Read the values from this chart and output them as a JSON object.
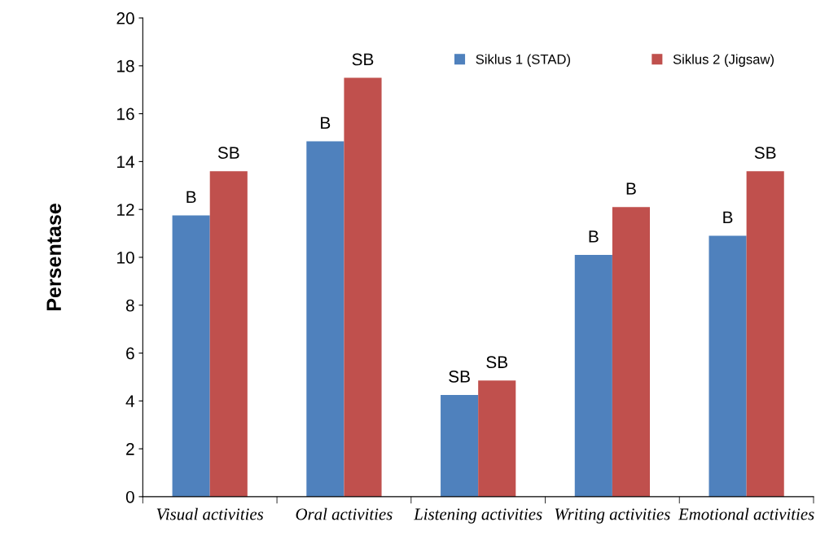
{
  "chart_data": {
    "type": "bar",
    "ylabel": "Persentase",
    "categories": [
      "Visual activities",
      "Oral activities",
      "Listening activities",
      "Writing activities",
      "Emotional activities"
    ],
    "series": [
      {
        "name": "Siklus 1 (STAD)",
        "color": "#4f81bd",
        "values": [
          11.75,
          14.85,
          4.25,
          10.1,
          10.9
        ],
        "value_labels": [
          "B",
          "B",
          "SB",
          "B",
          "B"
        ]
      },
      {
        "name": "Siklus 2 (Jigsaw)",
        "color": "#c0504d",
        "values": [
          13.6,
          17.5,
          4.85,
          12.1,
          13.6
        ],
        "value_labels": [
          "SB",
          "SB",
          "SB",
          "B",
          "SB"
        ]
      }
    ],
    "ylim": [
      0,
      20
    ],
    "yticks": [
      0,
      2,
      4,
      6,
      8,
      10,
      12,
      14,
      16,
      18,
      20
    ],
    "grid": false,
    "legend": "top right"
  }
}
